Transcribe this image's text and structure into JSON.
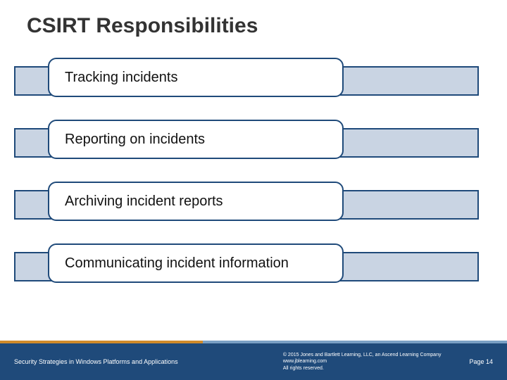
{
  "title": "CSIRT Responsibilities",
  "items": [
    {
      "label": "Tracking incidents"
    },
    {
      "label": "Reporting on incidents"
    },
    {
      "label": "Archiving incident reports"
    },
    {
      "label": "Communicating incident information"
    }
  ],
  "footer": {
    "left": "Security Strategies in Windows Platforms and Applications",
    "copyright_line1": "© 2015 Jones and Bartlett Learning, LLC, an Ascend Learning Company",
    "copyright_line2": "www.jblearning.com",
    "copyright_line3": "All rights reserved.",
    "page": "Page 14"
  },
  "styling": {
    "background_color": "#ffffff",
    "title_color": "#333333",
    "title_fontsize": 30,
    "bar_fill": "#c9d4e3",
    "bar_border": "#1f4a7a",
    "capsule_fill": "#ffffff",
    "capsule_border": "#1f4a7a",
    "capsule_radius": 12,
    "item_fontsize": 20,
    "footer_bg": "#1f4a7a",
    "footer_text_color": "#ffffff",
    "accent_left_color": "#d08b2a",
    "accent_right_color": "#7aa0c4"
  }
}
